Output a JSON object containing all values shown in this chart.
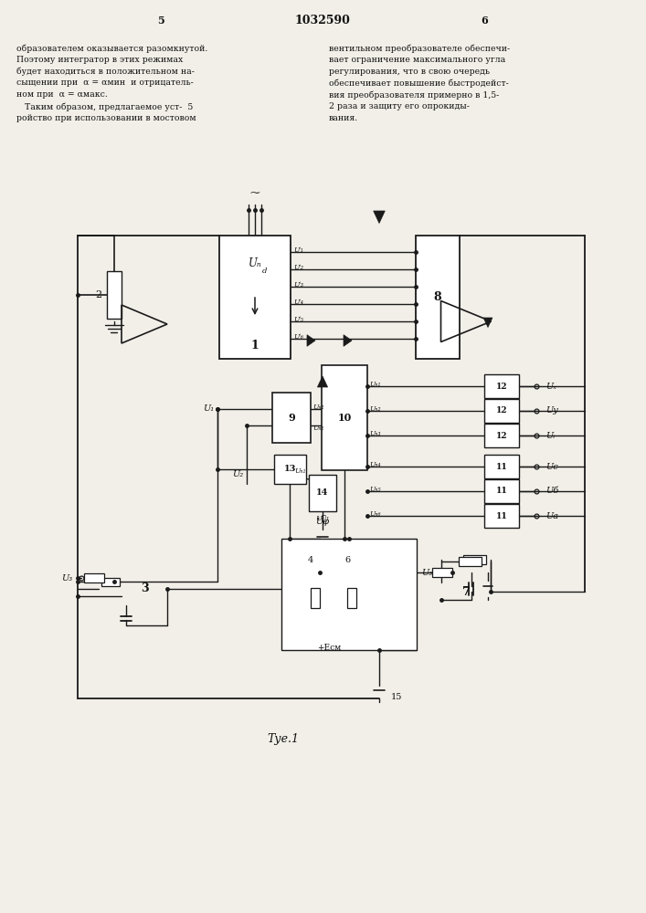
{
  "bg": "#f2efe8",
  "lc": "#1a1a1a",
  "tc": "#111111",
  "title": "1032590",
  "pL": "5",
  "pR": "6",
  "left_col": [
    "образователем оказывается разомкнутой.",
    "Поэтому интегратор в этих режимах",
    "будет находиться в положительном на-",
    "сыщении при  α = αмин  и отрицатель-",
    "ном при  α = αмакс.",
    "   Таким образом, предлагаемое уст-  5",
    "ройство при использовании в мостовом"
  ],
  "right_col": [
    "вентильном преобразователе обеспечи-",
    "вает ограничение максимального угла",
    "регулирования, что в свою очередь",
    "обеспечивает повышение быстродейст-",
    "вия преобразователя примерно в 1,5-",
    "2 раза и защиту его опрокиды-",
    "вания."
  ],
  "fig_label": "Τуе.1"
}
